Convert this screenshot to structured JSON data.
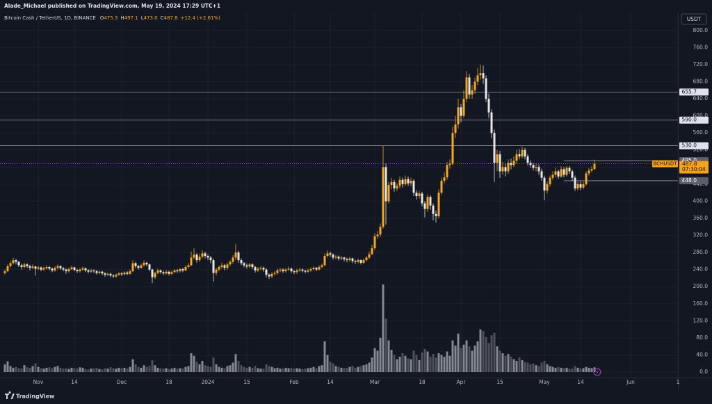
{
  "header": {
    "publisher": "Alade_Michael published on TradingView.com, May 19, 2024 17:29 UTC+1",
    "symbol": "Bitcoin Cash / TetherUS, 1D, BINANCE",
    "fields": [
      {
        "key": "O",
        "value": "475.3"
      },
      {
        "key": "H",
        "value": "497.1"
      },
      {
        "key": "L",
        "value": "473.0"
      },
      {
        "key": "C",
        "value": "487.8"
      }
    ],
    "change": "+12.4 (+2.61%)"
  },
  "footer": {
    "brand": "TradingView"
  },
  "chart_data": {
    "type": "candlestick",
    "currency": "USDT",
    "grid": true,
    "up_color": "#f5a623",
    "down_color": "#e6e6e6",
    "volume_up_color": "#9a9da5",
    "volume_down_color": "#5a5d66",
    "xlim": [
      -1.75,
      242
    ],
    "ylim": [
      -13,
      842
    ],
    "xticks": [
      {
        "value": 12,
        "label": "Nov"
      },
      {
        "value": 25,
        "label": "14"
      },
      {
        "value": 42,
        "label": "Dec"
      },
      {
        "value": 59,
        "label": "18"
      },
      {
        "value": 73,
        "label": "2024"
      },
      {
        "value": 87,
        "label": "15"
      },
      {
        "value": 104,
        "label": "Feb"
      },
      {
        "value": 117,
        "label": "14"
      },
      {
        "value": 133,
        "label": "Mar"
      },
      {
        "value": 150,
        "label": "18"
      },
      {
        "value": 164,
        "label": "Apr"
      },
      {
        "value": 178,
        "label": "15"
      },
      {
        "value": 194,
        "label": "May"
      },
      {
        "value": 207,
        "label": "14"
      },
      {
        "value": 225,
        "label": "Jun"
      },
      {
        "value": 242,
        "label": "1"
      }
    ],
    "yticks": [
      {
        "value": 0,
        "label": "0.0"
      },
      {
        "value": 40,
        "label": "40.0"
      },
      {
        "value": 80,
        "label": "80.0"
      },
      {
        "value": 120,
        "label": "120.0"
      },
      {
        "value": 160,
        "label": "160.0"
      },
      {
        "value": 200,
        "label": "200.0"
      },
      {
        "value": 240,
        "label": "240.0"
      },
      {
        "value": 280,
        "label": "280.0"
      },
      {
        "value": 320,
        "label": "320.0"
      },
      {
        "value": 360,
        "label": "360.0"
      },
      {
        "value": 400,
        "label": "400.0"
      },
      {
        "value": 440,
        "label": "440.0"
      },
      {
        "value": 480,
        "label": "480.0"
      },
      {
        "value": 520,
        "label": "520.0"
      },
      {
        "value": 560,
        "label": "560.0"
      },
      {
        "value": 600,
        "label": "600.0"
      },
      {
        "value": 640,
        "label": "640.0"
      },
      {
        "value": 680,
        "label": "680.0"
      },
      {
        "value": 720,
        "label": "720.0"
      },
      {
        "value": 760,
        "label": "760.0"
      },
      {
        "value": 800,
        "label": "800.0"
      }
    ],
    "levels": [
      {
        "value": 655.7,
        "label": "655.7",
        "color": "#e0e3eb"
      },
      {
        "value": 590,
        "label": "590.0",
        "color": "#e0e3eb"
      },
      {
        "value": 530,
        "label": "530.0",
        "color": "#e0e3eb"
      },
      {
        "value": 495,
        "label": "495.0",
        "color": "#5d606b",
        "from": 201
      },
      {
        "value": 448,
        "label": "448.0",
        "color": "#5d606b",
        "from": 201
      }
    ],
    "last_price": {
      "symbol": "BCHUSDT",
      "value": 487.8,
      "countdown": "07:30:04",
      "color": "#f7a21b"
    },
    "open": [
      232,
      236,
      248,
      255,
      262,
      258,
      250,
      246,
      252,
      248,
      244,
      247,
      242,
      245,
      240,
      243,
      246,
      242,
      238,
      244,
      248,
      243,
      240,
      236,
      241,
      245,
      239,
      236,
      240,
      243,
      238,
      235,
      238,
      236,
      232,
      235,
      231,
      228,
      230,
      226,
      224,
      228,
      231,
      229,
      233,
      230,
      236,
      255,
      248,
      244,
      250,
      256,
      252,
      240,
      222,
      232,
      238,
      234,
      231,
      235,
      230,
      234,
      238,
      236,
      241,
      238,
      246,
      250,
      268,
      275,
      262,
      270,
      278,
      272,
      268,
      262,
      232,
      240,
      246,
      250,
      244,
      252,
      258,
      268,
      280,
      262,
      255,
      250,
      247,
      252,
      246,
      238,
      242,
      244,
      240,
      228,
      224,
      230,
      232,
      238,
      240,
      236,
      240,
      242,
      236,
      234,
      238,
      240,
      237,
      235,
      238,
      241,
      244,
      240,
      246,
      250,
      272,
      278,
      275,
      268,
      270,
      266,
      268,
      264,
      262,
      266,
      260,
      258,
      262,
      256,
      262,
      268,
      276,
      290,
      318,
      322,
      340,
      480,
      400,
      438,
      445,
      430,
      436,
      450,
      440,
      452,
      442,
      448,
      420,
      412,
      418,
      395,
      382,
      410,
      390,
      370,
      365,
      420,
      448,
      456,
      485,
      488,
      560,
      580,
      620,
      600,
      640,
      690,
      650,
      660,
      680,
      695,
      700,
      688,
      640,
      608,
      560,
      490,
      510,
      470,
      480,
      470,
      490,
      485,
      495,
      510,
      505,
      520,
      505,
      490,
      485,
      478,
      480,
      470,
      455,
      425,
      440,
      455,
      462,
      470,
      458,
      475,
      462,
      478,
      470,
      455,
      430,
      440,
      432,
      440,
      465,
      472,
      475.3
    ],
    "high": [
      240,
      252,
      260,
      268,
      265,
      260,
      254,
      256,
      255,
      251,
      252,
      249,
      249,
      247,
      247,
      250,
      248,
      245,
      248,
      252,
      250,
      246,
      243,
      245,
      249,
      247,
      242,
      244,
      247,
      245,
      241,
      242,
      240,
      239,
      238,
      237,
      234,
      233,
      232,
      229,
      231,
      234,
      234,
      236,
      236,
      240,
      262,
      258,
      251,
      254,
      262,
      258,
      254,
      242,
      235,
      242,
      240,
      237,
      239,
      237,
      238,
      241,
      241,
      244,
      244,
      250,
      255,
      282,
      290,
      278,
      276,
      285,
      282,
      276,
      272,
      266,
      244,
      250,
      256,
      253,
      256,
      262,
      274,
      300,
      284,
      266,
      258,
      254,
      256,
      255,
      249,
      246,
      248,
      247,
      243,
      231,
      234,
      236,
      242,
      244,
      243,
      244,
      247,
      245,
      239,
      242,
      244,
      243,
      240,
      242,
      245,
      248,
      246,
      250,
      254,
      278,
      285,
      282,
      278,
      274,
      273,
      272,
      270,
      268,
      270,
      268,
      263,
      266,
      264,
      266,
      272,
      282,
      298,
      325,
      330,
      348,
      530,
      488,
      445,
      455,
      450,
      442,
      458,
      455,
      460,
      458,
      455,
      452,
      426,
      424,
      422,
      400,
      416,
      414,
      395,
      378,
      428,
      455,
      468,
      492,
      498,
      575,
      600,
      640,
      628,
      660,
      705,
      698,
      672,
      690,
      712,
      720,
      718,
      695,
      652,
      615,
      568,
      520,
      518,
      492,
      488,
      498,
      500,
      505,
      520,
      522,
      528,
      525,
      510,
      496,
      490,
      488,
      486,
      476,
      460,
      446,
      460,
      470,
      478,
      474,
      482,
      480,
      482,
      482,
      474,
      460,
      445,
      446,
      446,
      470,
      478,
      482,
      497.1
    ],
    "low": [
      228,
      234,
      245,
      252,
      252,
      246,
      240,
      243,
      244,
      238,
      241,
      226,
      239,
      236,
      237,
      240,
      238,
      234,
      235,
      240,
      239,
      236,
      230,
      233,
      238,
      236,
      232,
      233,
      237,
      234,
      231,
      232,
      232,
      228,
      229,
      227,
      223,
      225,
      222,
      220,
      221,
      225,
      225,
      226,
      227,
      228,
      234,
      244,
      240,
      242,
      247,
      248,
      236,
      208,
      218,
      229,
      230,
      227,
      228,
      226,
      227,
      231,
      232,
      233,
      234,
      236,
      243,
      248,
      264,
      256,
      258,
      266,
      266,
      262,
      255,
      212,
      226,
      236,
      242,
      238,
      240,
      248,
      254,
      262,
      256,
      250,
      245,
      242,
      243,
      241,
      233,
      234,
      238,
      235,
      222,
      218,
      220,
      226,
      228,
      234,
      232,
      233,
      237,
      232,
      229,
      230,
      235,
      233,
      231,
      232,
      235,
      238,
      236,
      238,
      243,
      248,
      268,
      270,
      263,
      264,
      261,
      262,
      259,
      257,
      258,
      255,
      253,
      254,
      252,
      253,
      259,
      265,
      274,
      286,
      312,
      316,
      336,
      345,
      395,
      428,
      422,
      424,
      430,
      432,
      436,
      436,
      435,
      412,
      404,
      406,
      388,
      362,
      375,
      380,
      355,
      350,
      360,
      415,
      442,
      450,
      476,
      484,
      548,
      570,
      585,
      595,
      632,
      640,
      640,
      652,
      672,
      685,
      675,
      632,
      595,
      548,
      445,
      470,
      455,
      462,
      458,
      464,
      475,
      480,
      488,
      498,
      500,
      498,
      484,
      478,
      472,
      470,
      462,
      448,
      402,
      418,
      434,
      450,
      456,
      452,
      455,
      456,
      458,
      464,
      448,
      424,
      425,
      426,
      428,
      436,
      460,
      468,
      473.0
    ],
    "close": [
      236,
      248,
      255,
      262,
      258,
      250,
      246,
      252,
      248,
      244,
      247,
      242,
      245,
      240,
      243,
      246,
      242,
      238,
      244,
      248,
      243,
      240,
      236,
      241,
      245,
      239,
      236,
      240,
      243,
      238,
      235,
      238,
      236,
      232,
      235,
      231,
      228,
      230,
      226,
      224,
      228,
      231,
      229,
      233,
      230,
      236,
      255,
      248,
      244,
      250,
      256,
      252,
      240,
      222,
      232,
      238,
      234,
      231,
      235,
      230,
      234,
      238,
      236,
      241,
      238,
      246,
      250,
      268,
      275,
      262,
      270,
      278,
      272,
      268,
      262,
      232,
      240,
      246,
      250,
      244,
      252,
      258,
      268,
      280,
      262,
      255,
      250,
      247,
      252,
      246,
      238,
      242,
      244,
      240,
      228,
      224,
      230,
      232,
      238,
      240,
      236,
      240,
      242,
      236,
      234,
      238,
      240,
      237,
      235,
      238,
      241,
      244,
      240,
      246,
      250,
      272,
      278,
      275,
      268,
      270,
      266,
      268,
      264,
      262,
      266,
      260,
      258,
      262,
      256,
      262,
      268,
      276,
      290,
      318,
      322,
      340,
      480,
      400,
      438,
      445,
      430,
      436,
      450,
      440,
      452,
      442,
      448,
      420,
      412,
      418,
      395,
      382,
      410,
      390,
      370,
      365,
      420,
      448,
      456,
      485,
      488,
      560,
      580,
      620,
      600,
      640,
      690,
      650,
      660,
      680,
      695,
      700,
      688,
      640,
      608,
      560,
      490,
      510,
      470,
      480,
      470,
      490,
      485,
      495,
      510,
      505,
      520,
      505,
      490,
      485,
      478,
      480,
      470,
      455,
      425,
      440,
      455,
      462,
      470,
      458,
      475,
      462,
      478,
      470,
      455,
      430,
      440,
      432,
      440,
      465,
      472,
      475.3,
      487.8
    ],
    "volume": [
      18,
      25,
      14,
      10,
      12,
      9,
      8,
      16,
      11,
      10,
      14,
      20,
      12,
      9,
      8,
      10,
      11,
      9,
      12,
      14,
      10,
      8,
      9,
      7,
      10,
      9,
      8,
      11,
      10,
      7,
      6,
      8,
      9,
      10,
      7,
      6,
      9,
      8,
      11,
      9,
      8,
      10,
      9,
      10,
      8,
      12,
      30,
      18,
      12,
      10,
      16,
      12,
      14,
      28,
      16,
      10,
      9,
      8,
      9,
      7,
      8,
      10,
      8,
      9,
      8,
      12,
      14,
      44,
      38,
      24,
      18,
      26,
      16,
      14,
      12,
      34,
      18,
      12,
      10,
      9,
      14,
      16,
      22,
      42,
      26,
      16,
      12,
      10,
      12,
      10,
      14,
      9,
      8,
      8,
      18,
      14,
      12,
      9,
      10,
      8,
      8,
      10,
      9,
      10,
      8,
      9,
      8,
      7,
      8,
      9,
      10,
      12,
      9,
      14,
      16,
      72,
      40,
      24,
      20,
      14,
      12,
      10,
      9,
      10,
      12,
      14,
      10,
      12,
      14,
      16,
      18,
      22,
      34,
      56,
      50,
      80,
      205,
      125,
      74,
      52,
      40,
      30,
      36,
      44,
      38,
      32,
      30,
      50,
      40,
      28,
      46,
      54,
      48,
      36,
      42,
      34,
      44,
      40,
      36,
      48,
      38,
      74,
      62,
      90,
      56,
      64,
      74,
      60,
      50,
      62,
      72,
      100,
      96,
      82,
      68,
      86,
      92,
      60,
      50,
      44,
      38,
      42,
      36,
      30,
      26,
      34,
      28,
      24,
      22,
      18,
      20,
      16,
      14,
      22,
      26,
      18,
      14,
      12,
      10,
      12,
      10,
      9,
      10,
      8,
      8,
      14,
      10,
      8,
      9,
      12,
      10,
      9,
      11
    ]
  }
}
